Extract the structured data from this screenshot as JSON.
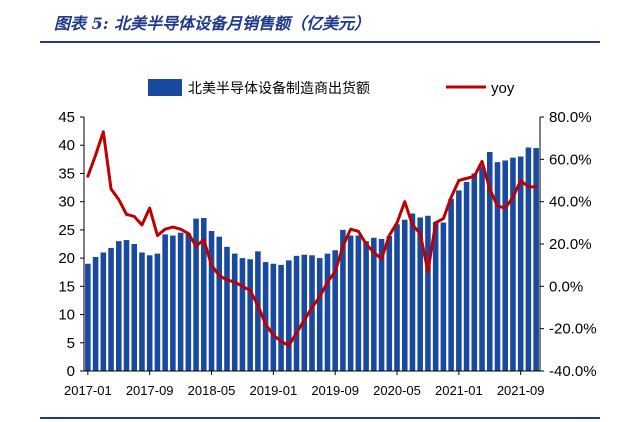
{
  "figure": {
    "title": "图表 5:  北美半导体设备月销售额（亿美元）"
  },
  "chart_data": {
    "type": "bar+line",
    "x": [
      "2017-01",
      "2017-02",
      "2017-03",
      "2017-04",
      "2017-05",
      "2017-06",
      "2017-07",
      "2017-08",
      "2017-09",
      "2017-10",
      "2017-11",
      "2017-12",
      "2018-01",
      "2018-02",
      "2018-03",
      "2018-04",
      "2018-05",
      "2018-06",
      "2018-07",
      "2018-08",
      "2018-09",
      "2018-10",
      "2018-11",
      "2018-12",
      "2019-01",
      "2019-02",
      "2019-03",
      "2019-04",
      "2019-05",
      "2019-06",
      "2019-07",
      "2019-08",
      "2019-09",
      "2019-10",
      "2019-11",
      "2019-12",
      "2020-01",
      "2020-02",
      "2020-03",
      "2020-04",
      "2020-05",
      "2020-06",
      "2020-07",
      "2020-08",
      "2020-09",
      "2020-10",
      "2020-11",
      "2020-12",
      "2021-01",
      "2021-02",
      "2021-03",
      "2021-04",
      "2021-05",
      "2021-06",
      "2021-07",
      "2021-08",
      "2021-09",
      "2021-10",
      "2021-11"
    ],
    "xtick_labels": [
      "2017-01",
      "2017-09",
      "2018-05",
      "2019-01",
      "2019-09",
      "2020-05",
      "2021-01",
      "2021-09"
    ],
    "series": [
      {
        "name": "北美半导体设备制造商出货额",
        "kind": "bar",
        "axis": "left",
        "color": "#1a4aa0",
        "values": [
          19.0,
          20.2,
          21.0,
          21.8,
          23.0,
          23.2,
          22.5,
          21.0,
          20.5,
          20.8,
          24.2,
          24.0,
          24.5,
          24.4,
          27.0,
          27.1,
          24.8,
          23.8,
          22.0,
          20.8,
          20.0,
          19.8,
          21.2,
          19.3,
          19.0,
          18.8,
          19.6,
          20.4,
          20.6,
          20.5,
          20.0,
          20.8,
          21.4,
          25.0,
          24.0,
          24.0,
          23.0,
          23.6,
          23.4,
          23.9,
          26.0,
          26.8,
          27.9,
          27.2,
          27.5,
          26.4,
          26.3,
          30.5,
          32.0,
          33.5,
          35.0,
          36.2,
          38.8,
          37.0,
          37.3,
          37.8,
          38.0,
          39.6,
          39.5
        ]
      },
      {
        "name": "yoy",
        "kind": "line",
        "axis": "right",
        "color": "#c00000",
        "values": [
          52,
          62,
          73,
          46,
          41,
          34,
          33,
          29,
          37,
          24,
          27,
          28,
          27,
          25,
          19,
          22,
          10,
          5,
          3,
          2,
          0,
          -2,
          -9,
          -18,
          -23,
          -26,
          -28,
          -22,
          -16,
          -10,
          -5,
          2,
          7,
          19,
          27,
          26,
          20,
          16,
          13,
          24,
          30,
          40,
          29,
          25,
          7,
          30,
          32,
          42,
          50,
          51,
          52,
          59,
          46,
          38,
          37,
          42,
          50,
          47,
          47
        ]
      }
    ],
    "y_left": {
      "ticks": [
        0,
        5,
        10,
        15,
        20,
        25,
        30,
        35,
        40,
        45
      ],
      "range": [
        0,
        45
      ]
    },
    "y_right": {
      "ticks": [
        "-40.0%",
        "-20.0%",
        "0.0%",
        "20.0%",
        "40.0%",
        "60.0%",
        "80.0%"
      ],
      "range": [
        -40,
        80
      ]
    },
    "legend": {
      "position": "top"
    }
  }
}
